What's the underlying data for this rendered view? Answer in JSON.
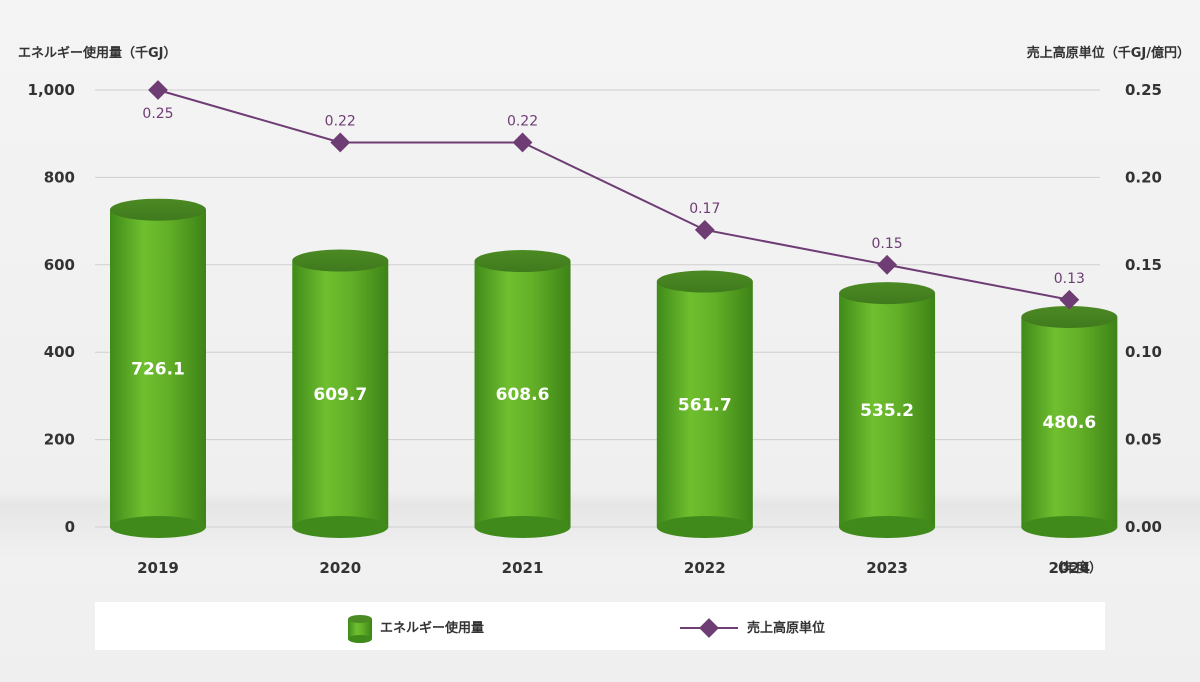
{
  "chart_data": {
    "type": "bar+line",
    "categories": [
      "2019",
      "2020",
      "2021",
      "2022",
      "2023",
      "2024"
    ],
    "xunit": "（年度）",
    "series": [
      {
        "name": "エネルギー使用量",
        "kind": "bar",
        "axis": "left",
        "values": [
          726.1,
          609.7,
          608.6,
          561.7,
          535.2,
          480.6
        ],
        "labels": [
          "726.1",
          "609.7",
          "608.6",
          "561.7",
          "535.2",
          "480.6"
        ],
        "color": "#5aa423"
      },
      {
        "name": "売上高原単位",
        "kind": "line",
        "axis": "right",
        "values": [
          0.25,
          0.22,
          0.22,
          0.17,
          0.15,
          0.13
        ],
        "labels": [
          "0.25",
          "0.22",
          "0.22",
          "0.17",
          "0.15",
          "0.13"
        ],
        "color": "#6e3d74"
      }
    ],
    "y_left": {
      "label": "エネルギー使用量（千GJ）",
      "range": [
        0,
        1000
      ],
      "ticks": [
        0,
        200,
        400,
        600,
        800,
        1000
      ],
      "tick_labels": [
        "0",
        "200",
        "400",
        "600",
        "800",
        "1,000"
      ]
    },
    "y_right": {
      "label": "売上高原単位（千GJ/億円）",
      "range": [
        0,
        0.25
      ],
      "ticks": [
        0,
        0.05,
        0.1,
        0.15,
        0.2,
        0.25
      ],
      "tick_labels": [
        "0.00",
        "0.05",
        "0.10",
        "0.15",
        "0.20",
        "0.25"
      ]
    },
    "grid": true,
    "legend": "bottom"
  }
}
